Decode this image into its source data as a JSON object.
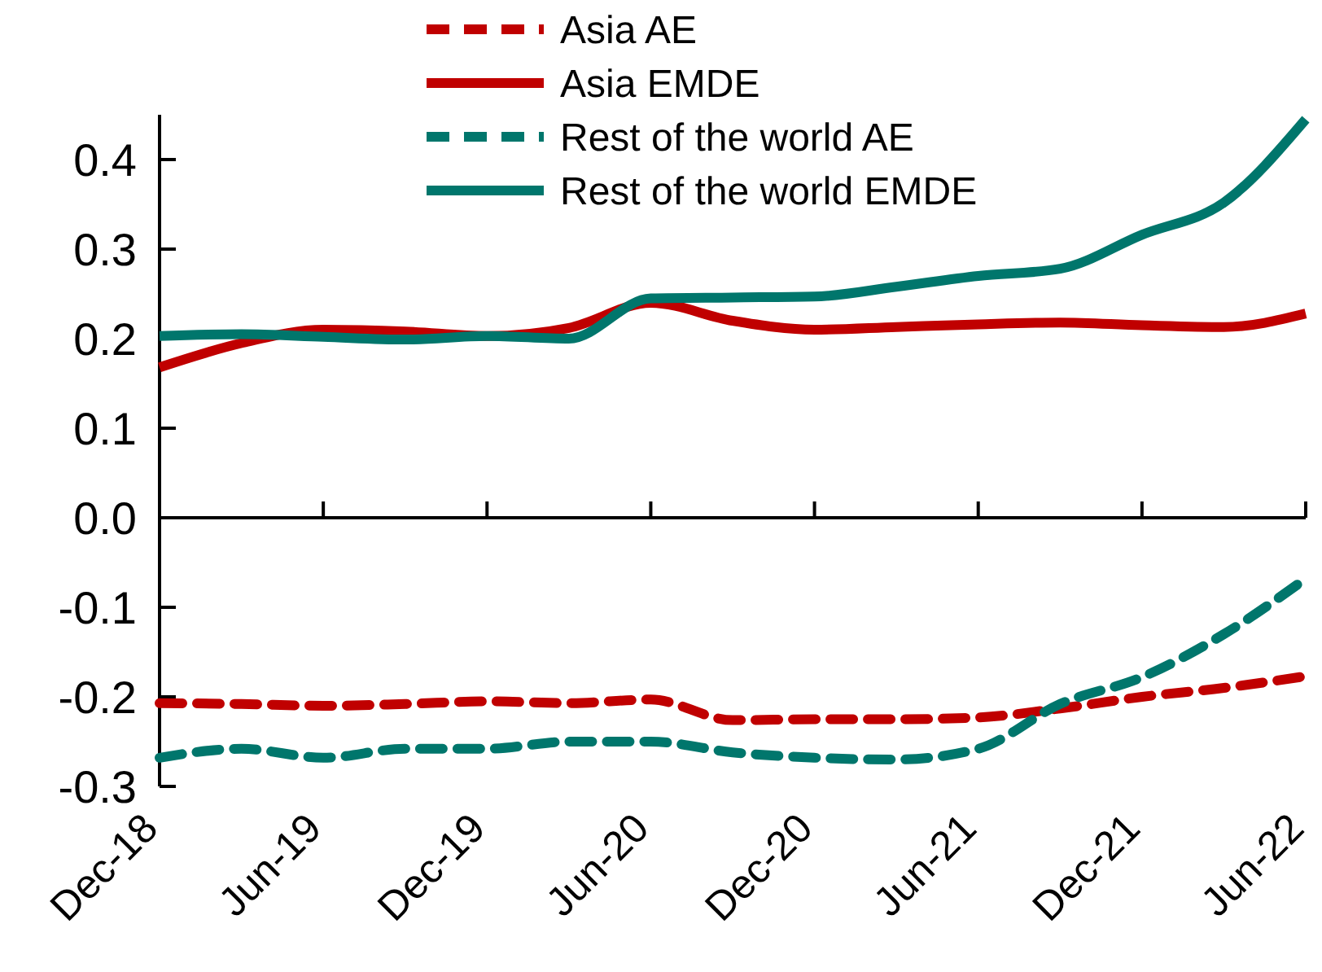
{
  "chart_data": {
    "type": "line",
    "categories": [
      "Dec-18",
      null,
      "Jun-19",
      null,
      "Dec-19",
      null,
      "Jun-20",
      null,
      "Dec-20",
      null,
      "Jun-21",
      null,
      "Dec-21",
      null,
      "Jun-22"
    ],
    "series": [
      {
        "name": "Asia AE",
        "color": "#c00000",
        "line_style": "dashed",
        "values": [
          -0.207,
          -0.208,
          -0.21,
          -0.208,
          -0.205,
          -0.207,
          -0.203,
          -0.226,
          -0.225,
          -0.225,
          -0.223,
          -0.213,
          -0.2,
          -0.19,
          -0.177
        ]
      },
      {
        "name": "Asia EMDE",
        "color": "#c00000",
        "line_style": "solid",
        "values": [
          0.168,
          0.195,
          0.21,
          0.208,
          0.203,
          0.212,
          0.24,
          0.22,
          0.21,
          0.213,
          0.216,
          0.218,
          0.215,
          0.213,
          0.228
        ]
      },
      {
        "name": "Rest of the world AE",
        "color": "#00766c",
        "line_style": "dashed",
        "values": [
          -0.268,
          -0.258,
          -0.268,
          -0.258,
          -0.258,
          -0.25,
          -0.25,
          -0.262,
          -0.268,
          -0.27,
          -0.258,
          -0.208,
          -0.178,
          -0.13,
          -0.068
        ]
      },
      {
        "name": "Rest of the world EMDE",
        "color": "#00766c",
        "line_style": "solid",
        "values": [
          0.203,
          0.205,
          0.202,
          0.199,
          0.203,
          0.2,
          0.245,
          0.246,
          0.247,
          0.258,
          0.27,
          0.278,
          0.316,
          0.352,
          0.445
        ]
      }
    ],
    "ylim": [
      -0.3,
      0.45
    ],
    "yticks": [
      {
        "value": -0.3,
        "label": "-0.3"
      },
      {
        "value": -0.2,
        "label": "-0.2"
      },
      {
        "value": -0.1,
        "label": "-0.1"
      },
      {
        "value": 0,
        "label": "0.0"
      },
      {
        "value": 0.1,
        "label": "0.1"
      },
      {
        "value": 0.2,
        "label": "0.2"
      },
      {
        "value": 0.3,
        "label": "0.3"
      },
      {
        "value": 0.4,
        "label": "0.4"
      }
    ],
    "legend": "top"
  }
}
